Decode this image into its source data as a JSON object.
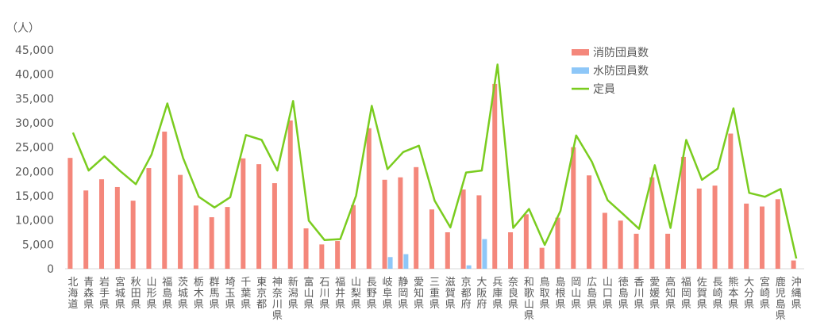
{
  "chart_data": {
    "type": "bar",
    "unit_label": "（人）",
    "ylim": [
      0,
      45000
    ],
    "yticks": [
      "0",
      "5,000",
      "10,000",
      "15,000",
      "20,000",
      "25,000",
      "30,000",
      "35,000",
      "40,000",
      "45,000"
    ],
    "categories": [
      "北海道",
      "青森県",
      "岩手県",
      "宮城県",
      "秋田県",
      "山形県",
      "福島県",
      "茨城県",
      "栃木県",
      "群馬県",
      "埼玉県",
      "千葉県",
      "東京都",
      "神奈川県",
      "新潟県",
      "富山県",
      "石川県",
      "福井県",
      "山梨県",
      "長野県",
      "岐阜県",
      "静岡県",
      "愛知県",
      "三重県",
      "滋賀県",
      "京都府",
      "大阪府",
      "兵庫県",
      "奈良県",
      "和歌山県",
      "鳥取県",
      "島根県",
      "岡山県",
      "広島県",
      "山口県",
      "徳島県",
      "香川県",
      "愛媛県",
      "高知県",
      "福岡県",
      "佐賀県",
      "長崎県",
      "熊本県",
      "大分県",
      "宮崎県",
      "鹿児島県",
      "沖縄県"
    ],
    "series": [
      {
        "name": "消防団員数",
        "type": "bar",
        "color": "#F4877B",
        "values": [
          22800,
          16100,
          18400,
          16800,
          14000,
          20700,
          28200,
          19300,
          13000,
          10600,
          12700,
          22700,
          21500,
          17600,
          30500,
          8300,
          5000,
          5700,
          13100,
          28900,
          18300,
          18800,
          20900,
          12200,
          7500,
          16300,
          15100,
          38000,
          7500,
          11200,
          4300,
          10500,
          25000,
          19200,
          11500,
          9900,
          7200,
          18800,
          7200,
          23000,
          16500,
          17100,
          27800,
          13400,
          12800,
          14300,
          1700
        ]
      },
      {
        "name": "水防団員数",
        "type": "bar",
        "color": "#8EC7F8",
        "values": [
          0,
          0,
          0,
          0,
          0,
          0,
          0,
          0,
          0,
          0,
          0,
          0,
          0,
          0,
          0,
          0,
          0,
          0,
          0,
          0,
          2400,
          3000,
          0,
          0,
          0,
          700,
          6100,
          0,
          0,
          0,
          0,
          0,
          0,
          0,
          0,
          0,
          0,
          0,
          0,
          0,
          0,
          0,
          0,
          0,
          0,
          0,
          0
        ]
      },
      {
        "name": "定員",
        "type": "line",
        "color": "#7ACC1F",
        "values": [
          28000,
          20200,
          23100,
          20100,
          17400,
          23500,
          34000,
          22800,
          14800,
          12600,
          14700,
          27500,
          26500,
          20200,
          34500,
          9900,
          5900,
          6100,
          15000,
          33500,
          20500,
          24000,
          25300,
          14000,
          8500,
          19800,
          20200,
          42000,
          8400,
          12300,
          4900,
          11900,
          27400,
          22000,
          14100,
          11200,
          8200,
          21300,
          8400,
          26500,
          18300,
          20600,
          33000,
          15600,
          14800,
          16400,
          2100
        ]
      }
    ],
    "legend_position": "top-right",
    "grid": false
  }
}
